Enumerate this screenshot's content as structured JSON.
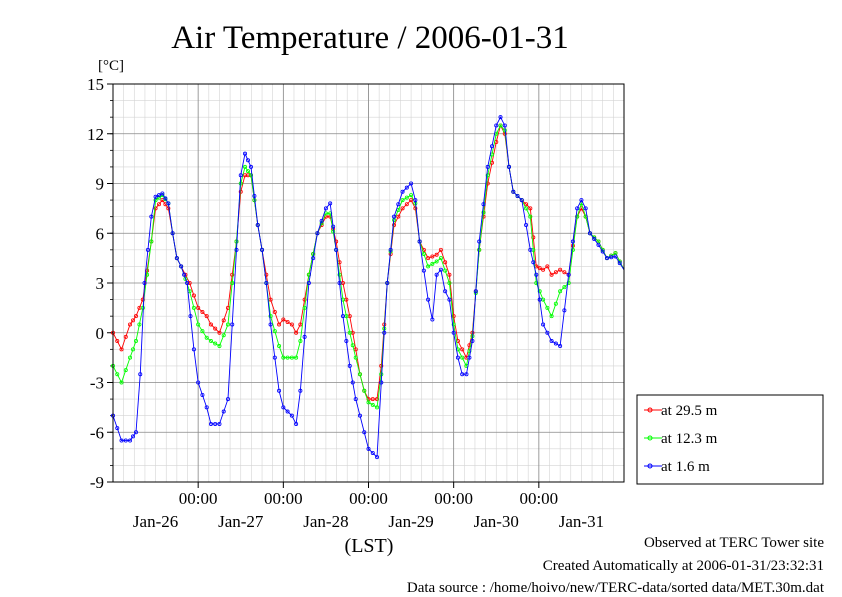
{
  "chart_data": {
    "type": "line",
    "title": "Air Temperature / 2006-01-31",
    "ylabel": "[°C]",
    "xlabel": "(LST)",
    "ylim": [
      -9,
      15
    ],
    "yticks": [
      -9,
      -6,
      -3,
      0,
      3,
      6,
      9,
      12,
      15
    ],
    "xlim": [
      0,
      6
    ],
    "time_ticks": [
      "00:00",
      "00:00",
      "00:00",
      "00:00",
      "00:00"
    ],
    "day_labels": [
      "Jan-26",
      "Jan-27",
      "Jan-28",
      "Jan-29",
      "Jan-30",
      "Jan-31"
    ],
    "grid": true,
    "legend_position": "right",
    "series": [
      {
        "name": "at 29.5 m",
        "color": "#ff0000",
        "x": [
          0.0,
          0.1,
          0.2,
          0.27,
          0.35,
          0.45,
          0.5,
          0.58,
          0.65,
          0.7,
          0.75,
          0.8,
          0.9,
          1.0,
          1.1,
          1.15,
          1.25,
          1.35,
          1.45,
          1.5,
          1.55,
          1.62,
          1.7,
          1.75,
          1.8,
          1.85,
          1.95,
          2.0,
          2.1,
          2.15,
          2.2,
          2.3,
          2.4,
          2.5,
          2.55,
          2.62,
          2.7,
          2.78,
          2.85,
          2.9,
          2.95,
          3.0,
          3.1,
          3.15,
          3.22,
          3.3,
          3.4,
          3.5,
          3.55,
          3.6,
          3.7,
          3.8,
          3.85,
          3.95,
          4.0,
          4.05,
          4.1,
          4.15,
          4.22,
          4.3,
          4.4,
          4.5,
          4.55,
          4.6,
          4.65,
          4.7,
          4.8,
          4.9,
          4.97,
          5.05,
          5.1,
          5.15,
          5.25,
          5.35,
          5.45,
          5.5,
          5.55,
          5.6,
          5.7,
          5.8,
          5.9,
          6.0
        ],
        "y": [
          0.0,
          -1.0,
          0.5,
          1.0,
          2.0,
          5.5,
          7.5,
          8.0,
          7.5,
          6.0,
          4.5,
          4.0,
          3.0,
          1.5,
          1.0,
          0.5,
          0.0,
          1.5,
          5.5,
          8.5,
          9.5,
          9.5,
          6.5,
          5.0,
          3.5,
          2.0,
          0.5,
          0.8,
          0.5,
          0.0,
          0.5,
          3.5,
          6.0,
          7.0,
          7.0,
          5.5,
          3.0,
          1.0,
          -1.0,
          -2.5,
          -3.5,
          -4.0,
          -4.0,
          -2.0,
          3.0,
          6.5,
          7.5,
          8.0,
          7.5,
          5.5,
          4.5,
          4.7,
          5.0,
          3.5,
          1.0,
          -0.5,
          -1.0,
          -1.5,
          0.0,
          5.0,
          9.0,
          11.5,
          12.5,
          12.0,
          10.0,
          8.5,
          8.0,
          7.5,
          4.0,
          3.8,
          4.0,
          3.5,
          3.8,
          3.5,
          7.0,
          7.5,
          7.0,
          6.0,
          5.5,
          4.5,
          4.8,
          3.8
        ]
      },
      {
        "name": "at 12.3 m",
        "color": "#00ff00",
        "x": [
          0.0,
          0.1,
          0.2,
          0.27,
          0.35,
          0.45,
          0.5,
          0.58,
          0.65,
          0.7,
          0.75,
          0.8,
          0.9,
          1.0,
          1.1,
          1.15,
          1.25,
          1.35,
          1.45,
          1.5,
          1.55,
          1.62,
          1.7,
          1.75,
          1.8,
          1.85,
          1.95,
          2.0,
          2.1,
          2.15,
          2.2,
          2.3,
          2.4,
          2.5,
          2.55,
          2.62,
          2.7,
          2.78,
          2.85,
          2.9,
          2.95,
          3.0,
          3.1,
          3.15,
          3.22,
          3.3,
          3.4,
          3.5,
          3.55,
          3.6,
          3.7,
          3.8,
          3.85,
          3.95,
          4.0,
          4.05,
          4.1,
          4.15,
          4.22,
          4.3,
          4.4,
          4.5,
          4.55,
          4.6,
          4.65,
          4.7,
          4.8,
          4.9,
          4.97,
          5.05,
          5.1,
          5.15,
          5.25,
          5.35,
          5.45,
          5.5,
          5.55,
          5.6,
          5.7,
          5.8,
          5.9,
          6.0
        ],
        "y": [
          -2.0,
          -3.0,
          -1.5,
          -0.5,
          1.5,
          5.5,
          8.0,
          8.3,
          7.8,
          6.0,
          4.5,
          4.0,
          2.5,
          0.5,
          -0.3,
          -0.5,
          -0.8,
          0.5,
          5.5,
          9.0,
          10.0,
          9.5,
          6.5,
          5.0,
          3.0,
          1.0,
          -0.8,
          -1.5,
          -1.5,
          -1.5,
          -0.5,
          3.5,
          6.0,
          7.2,
          7.2,
          5.0,
          2.0,
          0.0,
          -1.5,
          -2.5,
          -3.5,
          -4.2,
          -4.5,
          -2.5,
          3.0,
          6.8,
          8.0,
          8.3,
          7.8,
          5.5,
          4.0,
          4.3,
          4.5,
          3.0,
          0.5,
          -1.0,
          -1.5,
          -2.0,
          -0.2,
          5.0,
          9.5,
          12.0,
          12.5,
          12.2,
          10.0,
          8.5,
          8.0,
          7.0,
          3.0,
          2.0,
          1.5,
          1.0,
          2.5,
          3.0,
          7.0,
          7.8,
          7.0,
          6.0,
          5.5,
          4.5,
          4.8,
          3.8
        ]
      },
      {
        "name": "at 1.6 m",
        "color": "#0000ff",
        "x": [
          0.0,
          0.1,
          0.2,
          0.27,
          0.32,
          0.37,
          0.45,
          0.5,
          0.58,
          0.65,
          0.7,
          0.75,
          0.8,
          0.87,
          0.95,
          1.0,
          1.1,
          1.15,
          1.25,
          1.35,
          1.45,
          1.5,
          1.55,
          1.62,
          1.7,
          1.75,
          1.8,
          1.85,
          1.95,
          2.0,
          2.1,
          2.15,
          2.2,
          2.3,
          2.4,
          2.5,
          2.55,
          2.62,
          2.7,
          2.78,
          2.85,
          2.9,
          2.95,
          3.0,
          3.1,
          3.15,
          3.22,
          3.3,
          3.4,
          3.5,
          3.55,
          3.6,
          3.7,
          3.75,
          3.8,
          3.85,
          3.9,
          3.95,
          4.0,
          4.05,
          4.1,
          4.15,
          4.22,
          4.3,
          4.4,
          4.5,
          4.55,
          4.6,
          4.65,
          4.7,
          4.8,
          4.9,
          4.97,
          5.05,
          5.15,
          5.25,
          5.35,
          5.45,
          5.5,
          5.55,
          5.6,
          5.7,
          5.8,
          5.9,
          6.0
        ],
        "y": [
          -5.0,
          -6.5,
          -6.5,
          -6.0,
          -2.5,
          3.0,
          7.0,
          8.2,
          8.4,
          7.8,
          6.0,
          4.5,
          4.0,
          3.0,
          -1.0,
          -3.0,
          -4.5,
          -5.5,
          -5.5,
          -4.0,
          5.0,
          9.5,
          10.8,
          10.0,
          6.5,
          5.0,
          3.0,
          0.5,
          -3.5,
          -4.5,
          -5.0,
          -5.5,
          -3.5,
          3.0,
          6.0,
          7.5,
          7.8,
          5.0,
          1.0,
          -2.0,
          -4.0,
          -5.0,
          -6.0,
          -7.0,
          -7.5,
          -3.0,
          3.0,
          7.0,
          8.5,
          9.0,
          8.0,
          5.5,
          2.0,
          0.8,
          3.5,
          3.8,
          2.5,
          2.0,
          0.0,
          -1.5,
          -2.5,
          -2.5,
          -0.5,
          5.5,
          10.0,
          12.5,
          13.0,
          12.5,
          10.0,
          8.5,
          8.0,
          5.0,
          3.5,
          0.5,
          -0.5,
          -0.8,
          3.5,
          7.5,
          8.0,
          7.5,
          6.0,
          5.3,
          4.5,
          4.6,
          3.8
        ]
      }
    ]
  },
  "footer": {
    "site": "Observed at TERC Tower site",
    "created": "Created Automatically at 2006-01-31/23:32:31",
    "source": "Data source : /home/hoivo/new/TERC-data/sorted  data/MET.30m.dat"
  }
}
